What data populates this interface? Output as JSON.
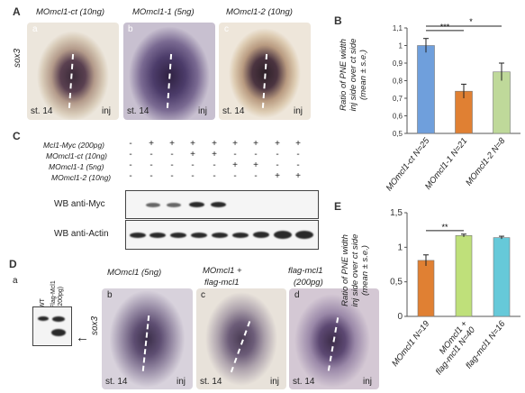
{
  "panelA": {
    "letter": "A",
    "titles": [
      "MOmcl1-ct (10ng)",
      "MOmcl1-1 (5ng)",
      "MOmcl1-2 (10ng)"
    ],
    "sub": [
      "a",
      "b",
      "c"
    ],
    "marker": "sox3",
    "stage": "st. 14",
    "inj": "inj"
  },
  "panelB": {
    "letter": "B",
    "ylabel_lines": [
      "Ratio of PNE width",
      "inj side over ct side",
      "(mean ± s.e.)"
    ],
    "sig1": "***",
    "sig2": "*"
  },
  "panelC": {
    "letter": "C",
    "rows": [
      {
        "label": "Mcl1-Myc (200pg)",
        "signs": [
          "-",
          "+",
          "+",
          "+",
          "+",
          "+",
          "+",
          "+",
          "+"
        ]
      },
      {
        "label": "MOmcl1-ct (10ng)",
        "signs": [
          "-",
          "-",
          "-",
          "+",
          "+",
          "-",
          "-",
          "-",
          "-"
        ]
      },
      {
        "label": "MOmcl1-1 (5ng)",
        "signs": [
          "-",
          "-",
          "-",
          "-",
          "-",
          "+",
          "+",
          "-",
          "-"
        ]
      },
      {
        "label": "MOmcl1-2 (10ng)",
        "signs": [
          "-",
          "-",
          "-",
          "-",
          "-",
          "-",
          "-",
          "+",
          "+"
        ]
      }
    ],
    "blot1": "WB anti-Myc",
    "blot2": "WB anti-Actin"
  },
  "panelD": {
    "letter": "D",
    "sub_a": "a",
    "wt": "WT",
    "flag": "Flag-Mcl1",
    "flag2": "(200pg)",
    "arrow": "←",
    "titles": [
      "MOmcl1 (5ng)",
      "MOmcl1 +",
      "flag-mcl1",
      "flag-mcl1",
      "(200pg)"
    ],
    "sub": [
      "b",
      "c",
      "d"
    ],
    "marker": "sox3",
    "stage": "st. 14",
    "inj": "inj"
  },
  "panelE": {
    "letter": "E",
    "ylabel_lines": [
      "Ratio of PNE width",
      "inj side over ct side",
      "(mean ± s.e.)"
    ],
    "sig": "**"
  },
  "chart_data": [
    {
      "type": "bar",
      "categories": [
        "MOmcl1-ct N=25",
        "MOmcl1-1 N=21",
        "MOmcl1-2 N=8"
      ],
      "values": [
        1.0,
        0.74,
        0.85
      ],
      "errors": [
        0.04,
        0.04,
        0.05
      ],
      "colors": [
        "#6f9fdc",
        "#e08033",
        "#bfd99a"
      ],
      "ylim": [
        0.5,
        1.1
      ],
      "yticks": [
        "0,5",
        "0,6",
        "0,7",
        "0,8",
        "0,9",
        "1",
        "1,1"
      ],
      "ytick_values": [
        0.5,
        0.6,
        0.7,
        0.8,
        0.9,
        1.0,
        1.1
      ]
    },
    {
      "type": "bar",
      "categories": [
        "MOmcl1 N=19",
        "MOmcl1 + flag-mcl1 N=40",
        "flag-mcl1 N=16"
      ],
      "values": [
        0.81,
        1.17,
        1.14
      ],
      "errors": [
        0.08,
        0.02,
        0.02
      ],
      "colors": [
        "#e08033",
        "#bfe07a",
        "#66c9d9"
      ],
      "ylim": [
        0,
        1.5
      ],
      "yticks": [
        "0",
        "0,5",
        "1",
        "1,5"
      ],
      "ytick_values": [
        0,
        0.5,
        1.0,
        1.5
      ]
    }
  ]
}
